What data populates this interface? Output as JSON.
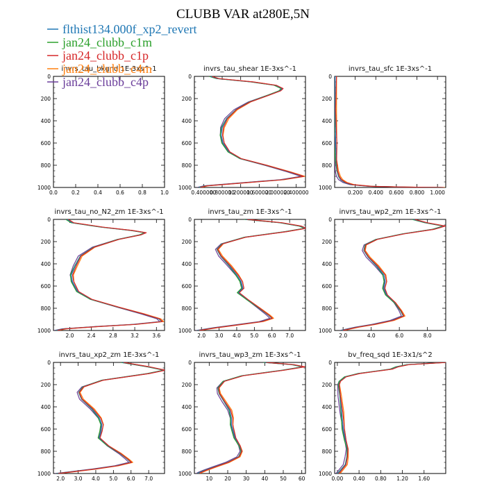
{
  "title": "CLUBB VAR at280E,5N",
  "legend": {
    "items": [
      {
        "name": "flthist134.000f_xp2_revert",
        "color": "#1f77b4"
      },
      {
        "name": "jan24_clubb_c1m",
        "color": "#2ca02c"
      },
      {
        "name": "jan24_clubb_c1p",
        "color": "#d62728"
      },
      {
        "name": "jan24_clubb_c4m",
        "color": "#ff7f0e"
      },
      {
        "name": "jan24_clubb_c4p",
        "color": "#6a3d9a"
      }
    ]
  },
  "chart_data": [
    {
      "type": "line",
      "title": "invrs_tau_bkgnd   1E-3xs^-1",
      "xticks": [
        "0.0",
        "0.2",
        "0.4",
        "0.6",
        "0.8",
        "1.0"
      ],
      "xlim": [
        0,
        1
      ],
      "ylim": [
        1000,
        0
      ],
      "yticks": [
        0,
        200,
        400,
        600,
        800,
        1000
      ],
      "series": []
    },
    {
      "type": "line",
      "title": "invrs_tau_shear   1E-3xs^-1",
      "xticks": [
        "0.400000",
        "0.800000",
        "1.200000",
        "1.600000",
        "2.000000",
        "2.400000"
      ],
      "xlim": [
        0.2,
        2.6
      ],
      "ylim": [
        1000,
        0
      ],
      "yticks": [
        0,
        200,
        400,
        600,
        800,
        1000
      ],
      "profile": [
        [
          0,
          0.55
        ],
        [
          20,
          0.7
        ],
        [
          50,
          1.45
        ],
        [
          80,
          1.95
        ],
        [
          110,
          2.1
        ],
        [
          130,
          2.05
        ],
        [
          170,
          1.8
        ],
        [
          230,
          1.4
        ],
        [
          300,
          1.1
        ],
        [
          380,
          0.9
        ],
        [
          460,
          0.8
        ],
        [
          530,
          0.78
        ],
        [
          600,
          0.82
        ],
        [
          680,
          0.95
        ],
        [
          740,
          1.2
        ],
        [
          800,
          1.75
        ],
        [
          860,
          2.25
        ],
        [
          900,
          2.55
        ],
        [
          930,
          2.1
        ],
        [
          960,
          1.2
        ],
        [
          985,
          0.45
        ],
        [
          1000,
          0.3
        ]
      ]
    },
    {
      "type": "line",
      "title": "invrs_tau_sfc   1E-3xs^-1",
      "xticks": [
        "0.200",
        "0.400",
        "0.600",
        "0.800",
        "1.000"
      ],
      "xlim": [
        0,
        1.08
      ],
      "ylim": [
        1000,
        0
      ],
      "yticks": [
        0,
        200,
        400,
        600,
        800,
        1000
      ],
      "profile": [
        [
          0,
          0.005
        ],
        [
          300,
          0.005
        ],
        [
          600,
          0.01
        ],
        [
          750,
          0.015
        ],
        [
          850,
          0.025
        ],
        [
          900,
          0.04
        ],
        [
          930,
          0.06
        ],
        [
          955,
          0.1
        ],
        [
          975,
          0.17
        ],
        [
          990,
          0.35
        ],
        [
          997,
          0.7
        ],
        [
          1000,
          1.05
        ]
      ]
    },
    {
      "type": "line",
      "title": "invrs_tau_no_N2_zm   1E-3xs^-1",
      "xticks": [
        "2.0",
        "2.4",
        "2.8",
        "3.2",
        "3.6"
      ],
      "xlim": [
        1.7,
        3.75
      ],
      "ylim": [
        1000,
        0
      ],
      "yticks": [
        0,
        200,
        400,
        600,
        800,
        1000
      ],
      "profile": [
        [
          0,
          1.95
        ],
        [
          30,
          2.05
        ],
        [
          70,
          2.6
        ],
        [
          100,
          3.15
        ],
        [
          120,
          3.4
        ],
        [
          140,
          3.3
        ],
        [
          180,
          2.9
        ],
        [
          250,
          2.45
        ],
        [
          330,
          2.2
        ],
        [
          420,
          2.1
        ],
        [
          500,
          2.03
        ],
        [
          560,
          2.05
        ],
        [
          650,
          2.15
        ],
        [
          720,
          2.4
        ],
        [
          790,
          2.9
        ],
        [
          850,
          3.35
        ],
        [
          895,
          3.65
        ],
        [
          920,
          3.7
        ],
        [
          945,
          3.2
        ],
        [
          965,
          2.5
        ],
        [
          985,
          1.9
        ],
        [
          1000,
          1.75
        ]
      ]
    },
    {
      "type": "line",
      "title": "invrs_tau_zm   1E-3xs^-1",
      "xticks": [
        "2.0",
        "3.0",
        "4.0",
        "5.0",
        "6.0",
        "7.0"
      ],
      "xlim": [
        1.6,
        7.9
      ],
      "ylim": [
        1000,
        0
      ],
      "yticks": [
        0,
        200,
        400,
        600,
        800,
        1000
      ],
      "profile": [
        [
          0,
          4.5
        ],
        [
          30,
          6.5
        ],
        [
          60,
          7.6
        ],
        [
          80,
          7.9
        ],
        [
          110,
          6.8
        ],
        [
          160,
          4.5
        ],
        [
          220,
          3.2
        ],
        [
          270,
          2.9
        ],
        [
          330,
          3.1
        ],
        [
          420,
          3.6
        ],
        [
          500,
          4.0
        ],
        [
          560,
          4.25
        ],
        [
          620,
          4.35
        ],
        [
          660,
          4.1
        ],
        [
          720,
          4.6
        ],
        [
          800,
          5.3
        ],
        [
          860,
          5.8
        ],
        [
          890,
          6.0
        ],
        [
          920,
          5.4
        ],
        [
          950,
          4.0
        ],
        [
          975,
          2.8
        ],
        [
          1000,
          1.8
        ]
      ]
    },
    {
      "type": "line",
      "title": "invrs_tau_wp2_zm   1E-3xs^-1",
      "xticks": [
        "2.0",
        "4.0",
        "6.0",
        "8.0"
      ],
      "xlim": [
        1.4,
        9.3
      ],
      "ylim": [
        1000,
        0
      ],
      "yticks": [
        0,
        200,
        400,
        600,
        800,
        1000
      ],
      "profile": [
        [
          0,
          7.0
        ],
        [
          30,
          7.9
        ],
        [
          60,
          9.2
        ],
        [
          90,
          8.4
        ],
        [
          130,
          6.3
        ],
        [
          180,
          4.4
        ],
        [
          230,
          3.6
        ],
        [
          280,
          3.5
        ],
        [
          340,
          3.8
        ],
        [
          420,
          4.4
        ],
        [
          500,
          4.9
        ],
        [
          560,
          5.0
        ],
        [
          620,
          4.9
        ],
        [
          680,
          5.1
        ],
        [
          750,
          5.7
        ],
        [
          820,
          6.1
        ],
        [
          870,
          6.3
        ],
        [
          910,
          5.5
        ],
        [
          945,
          4.2
        ],
        [
          970,
          3.0
        ],
        [
          1000,
          1.9
        ]
      ]
    },
    {
      "type": "line",
      "title": "invrs_tau_xp2_zm   1E-3xs^-1",
      "xticks": [
        "2.0",
        "3.0",
        "4.0",
        "5.0",
        "6.0",
        "7.0"
      ],
      "xlim": [
        1.6,
        7.9
      ],
      "ylim": [
        1000,
        0
      ],
      "yticks": [
        0,
        200,
        400,
        600,
        800,
        1000
      ],
      "profile": [
        [
          0,
          5.5
        ],
        [
          40,
          7.0
        ],
        [
          70,
          7.9
        ],
        [
          100,
          7.0
        ],
        [
          160,
          4.4
        ],
        [
          220,
          3.3
        ],
        [
          270,
          3.05
        ],
        [
          330,
          3.2
        ],
        [
          420,
          3.8
        ],
        [
          500,
          4.2
        ],
        [
          560,
          4.35
        ],
        [
          620,
          4.3
        ],
        [
          680,
          4.2
        ],
        [
          750,
          4.7
        ],
        [
          820,
          5.4
        ],
        [
          870,
          5.8
        ],
        [
          900,
          6.0
        ],
        [
          930,
          5.2
        ],
        [
          960,
          3.9
        ],
        [
          985,
          2.6
        ],
        [
          1000,
          1.8
        ]
      ]
    },
    {
      "type": "line",
      "title": "invrs_tau_wp3_zm   1E-3xs^-1",
      "xticks": [
        "10",
        "20",
        "30",
        "40",
        "50",
        "60"
      ],
      "xlim": [
        2,
        62
      ],
      "ylim": [
        1000,
        0
      ],
      "yticks": [
        0,
        200,
        400,
        600,
        800,
        1000
      ],
      "profile": [
        [
          0,
          40
        ],
        [
          20,
          55
        ],
        [
          40,
          61
        ],
        [
          70,
          50
        ],
        [
          120,
          28
        ],
        [
          170,
          18
        ],
        [
          230,
          15
        ],
        [
          280,
          15.5
        ],
        [
          350,
          18
        ],
        [
          430,
          21
        ],
        [
          500,
          22
        ],
        [
          560,
          22
        ],
        [
          620,
          23
        ],
        [
          680,
          24
        ],
        [
          750,
          26.5
        ],
        [
          800,
          27.5
        ],
        [
          850,
          26
        ],
        [
          900,
          20
        ],
        [
          940,
          13
        ],
        [
          970,
          8
        ],
        [
          990,
          5
        ],
        [
          1000,
          4
        ]
      ]
    },
    {
      "type": "line",
      "title": "bv_freq_sqd   1E-3x1/s^2",
      "xticks": [
        "0.00",
        "0.40",
        "0.80",
        "1.20",
        "1.60"
      ],
      "xlim": [
        -0.05,
        2.0
      ],
      "ylim": [
        1000,
        0
      ],
      "yticks": [
        0,
        200,
        400,
        600,
        800,
        1000
      ],
      "profile": [
        [
          0,
          2.0
        ],
        [
          20,
          1.3
        ],
        [
          40,
          1.1
        ],
        [
          60,
          1.0
        ],
        [
          80,
          0.7
        ],
        [
          100,
          0.4
        ],
        [
          130,
          0.15
        ],
        [
          170,
          0.05
        ],
        [
          200,
          0.03
        ],
        [
          300,
          0.05
        ],
        [
          450,
          0.08
        ],
        [
          600,
          0.11
        ],
        [
          700,
          0.15
        ],
        [
          780,
          0.19
        ],
        [
          850,
          0.18
        ],
        [
          920,
          0.15
        ],
        [
          960,
          0.08
        ],
        [
          990,
          0.03
        ],
        [
          1000,
          0.0
        ]
      ]
    }
  ]
}
